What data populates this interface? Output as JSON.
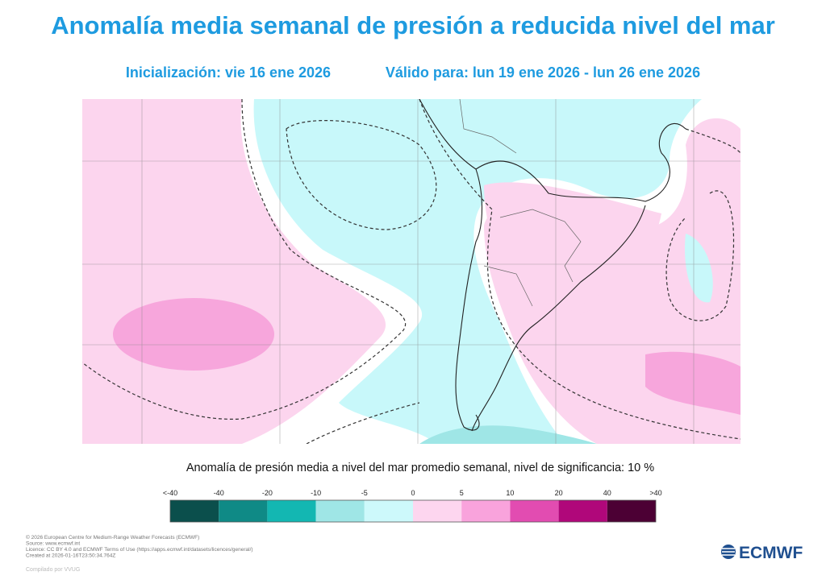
{
  "header": {
    "title": "Anomalía media semanal de presión a reducida nivel del mar",
    "initialization": "Inicialización: vie 16 ene 2026",
    "valid": "Válido para: lun 19 ene 2026 - lun 26 ene 2026"
  },
  "legend": {
    "title": "Anomalía de presión media a nivel del mar promedio semanal, nivel de significancia: 10 %",
    "labels": [
      "<-40",
      "-40",
      "-20",
      "-10",
      "-5",
      "0",
      "5",
      "10",
      "20",
      "40",
      ">40"
    ],
    "colors": [
      "#0b4f4c",
      "#0f8a86",
      "#13b7b2",
      "#9fe6e6",
      "#cdf9fb",
      "#fdd6ef",
      "#f9a3dc",
      "#e24cb1",
      "#b0077a",
      "#4c0034"
    ]
  },
  "footer": {
    "lines": [
      "© 2026 European Centre for Medium-Range Weather Forecasts (ECMWF)",
      "Source: www.ecmwf.int",
      "Licence: CC BY 4.0 and ECMWF Terms of Use (https://apps.ecmwf.int/datasets/licences/general/)",
      "Created at 2026-01-16T23:50:34.764Z"
    ],
    "compiled": "Compilado por VVUG",
    "logo": "ECMWF"
  }
}
